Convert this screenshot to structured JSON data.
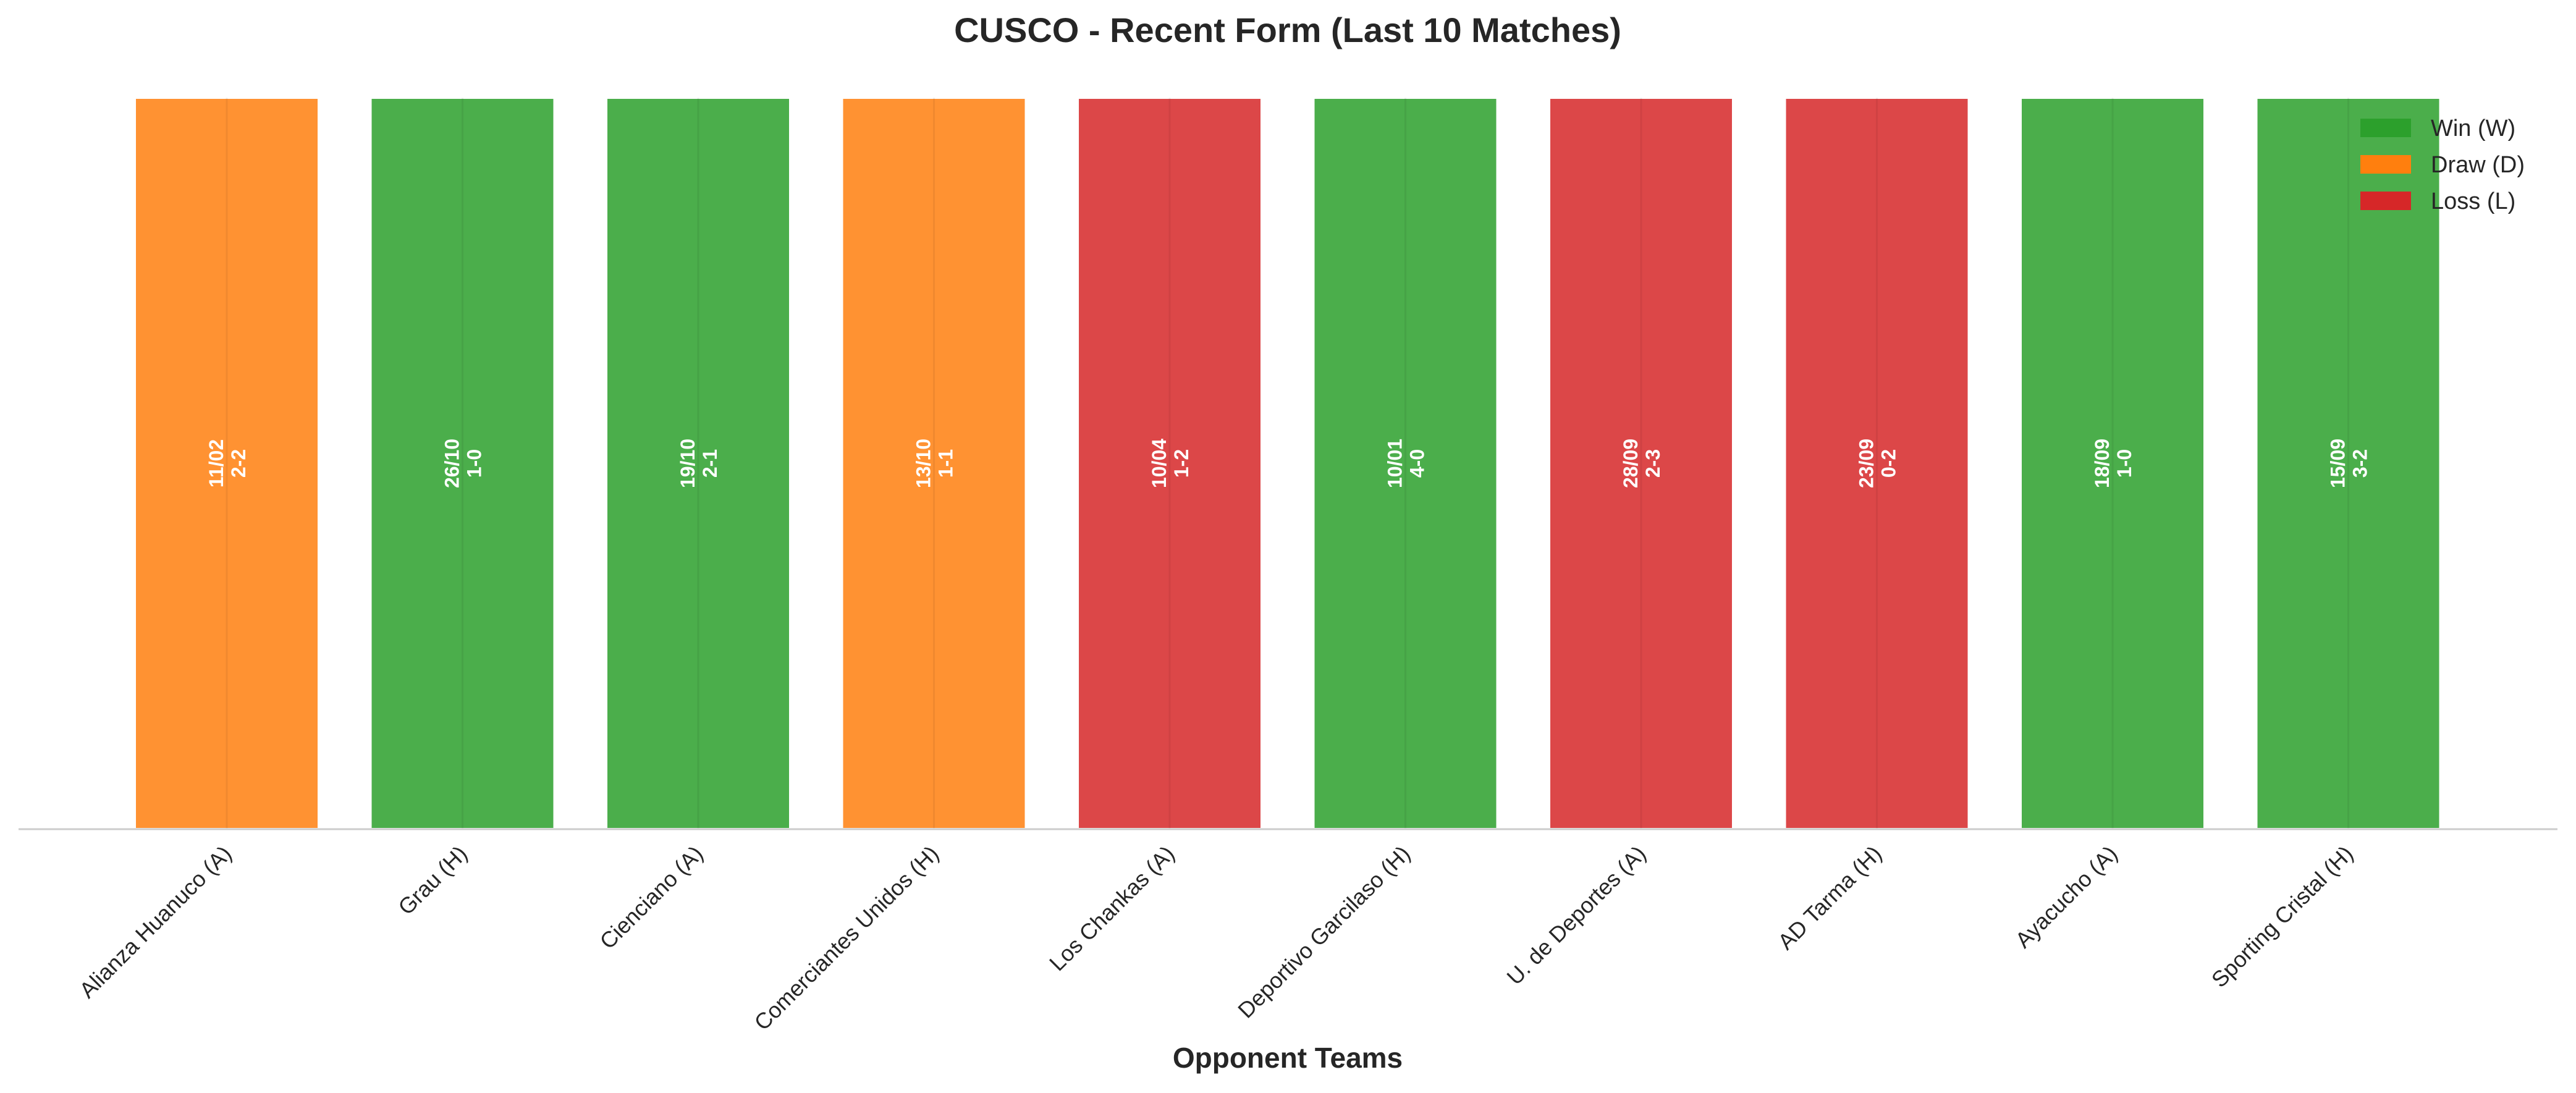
{
  "chart_data": {
    "type": "bar",
    "title": "CUSCO - Recent Form (Last 10 Matches)",
    "xlabel": "Opponent Teams",
    "ylabel": "",
    "grid": false,
    "legend_placement": "top-right",
    "categories": [
      "Alianza Huanuco (A)",
      "Grau (H)",
      "Cienciano (A)",
      "Comerciantes Unidos (H)",
      "Los Chankas (A)",
      "Deportivo Garcilaso (H)",
      "U. de Deportes (A)",
      "AD Tarma (H)",
      "Ayacucho (A)",
      "Sporting Cristal (H)"
    ],
    "values": [
      1,
      1,
      1,
      1,
      1,
      1,
      1,
      1,
      1,
      1
    ],
    "results": [
      "D",
      "W",
      "W",
      "D",
      "L",
      "W",
      "L",
      "L",
      "W",
      "W"
    ],
    "dates": [
      "11/02",
      "26/10",
      "19/10",
      "13/10",
      "10/04",
      "10/01",
      "28/09",
      "23/09",
      "18/09",
      "15/09"
    ],
    "scores": [
      "2-2",
      "1-0",
      "2-1",
      "1-1",
      "1-2",
      "4-0",
      "2-3",
      "0-2",
      "1-0",
      "3-2"
    ],
    "legend": [
      {
        "key": "W",
        "label": "Win (W)",
        "color": "#2ca02c"
      },
      {
        "key": "D",
        "label": "Draw (D)",
        "color": "#ff7f0e"
      },
      {
        "key": "L",
        "label": "Loss (L)",
        "color": "#d62728"
      }
    ],
    "colors": {
      "W": "#2ca02c",
      "D": "#ff7f0e",
      "L": "#d62728"
    }
  }
}
